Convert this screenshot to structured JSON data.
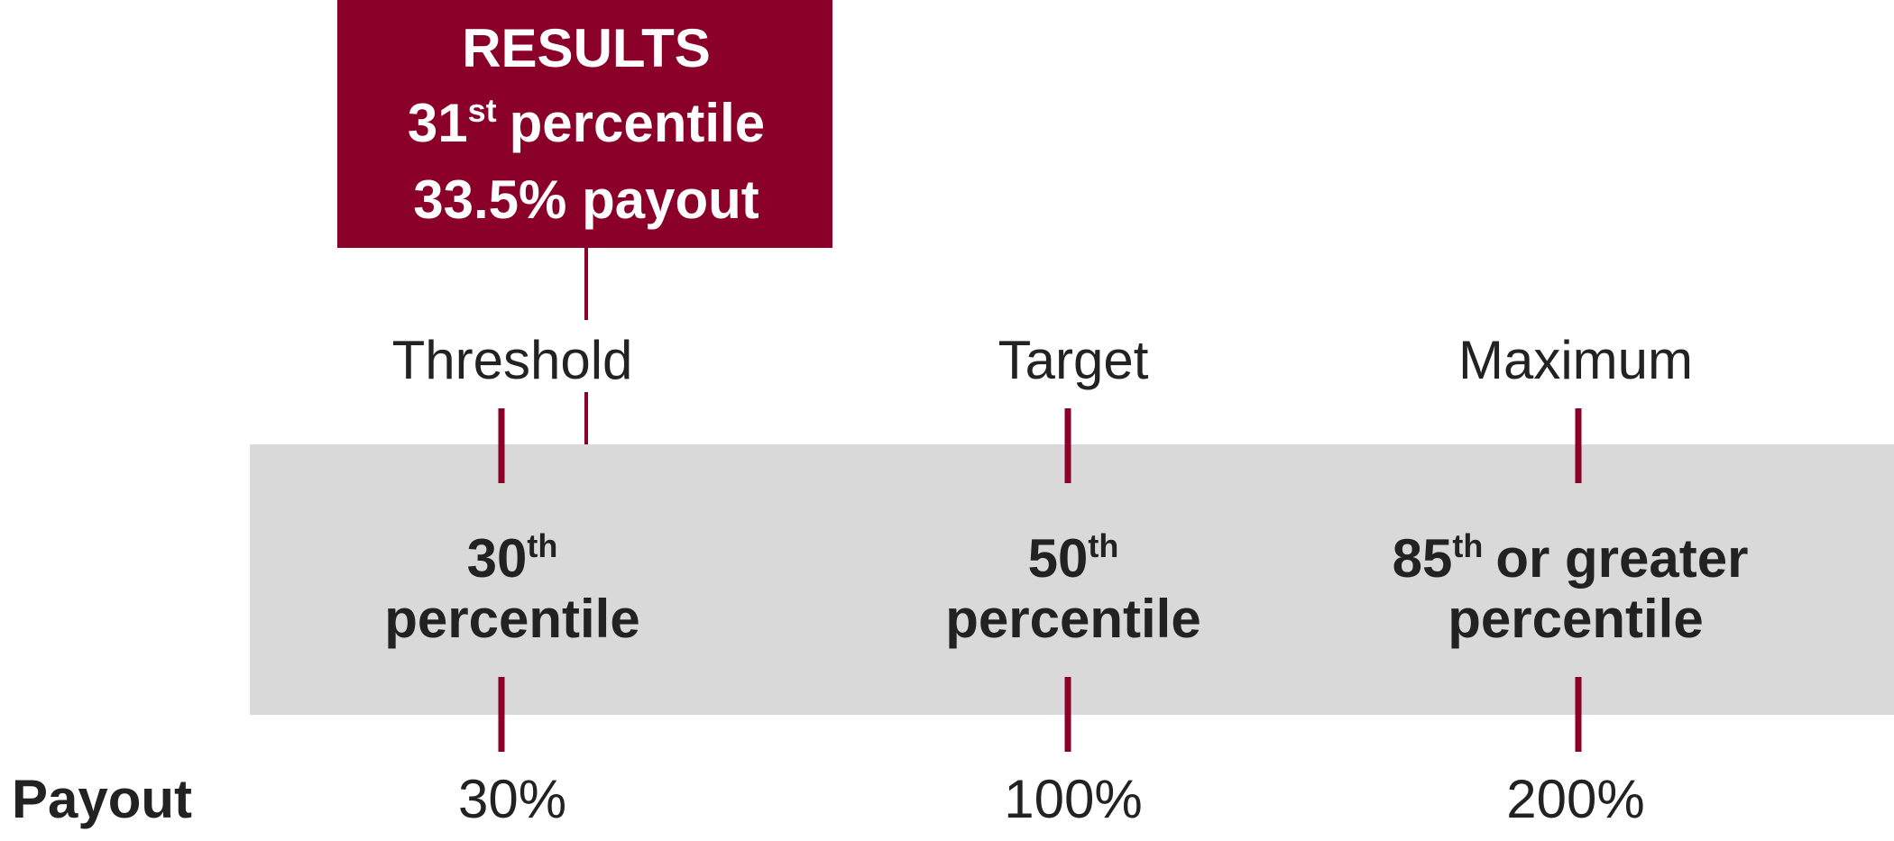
{
  "results": {
    "title": "RESULTS",
    "percentile": {
      "number": "31",
      "suffix": "st",
      "word": "percentile"
    },
    "payout": "33.5% payout"
  },
  "levels": [
    {
      "label": "Threshold",
      "number": "30",
      "suffix": "th",
      "rest": null,
      "word": "percentile",
      "payout": "30%"
    },
    {
      "label": "Target",
      "number": "50",
      "suffix": "th",
      "rest": null,
      "word": "percentile",
      "payout": "100%"
    },
    {
      "label": "Maximum",
      "number": "85",
      "suffix": "th",
      "rest": "or greater",
      "word": "percentile",
      "payout": "200%"
    }
  ],
  "payout_label": "Payout"
}
